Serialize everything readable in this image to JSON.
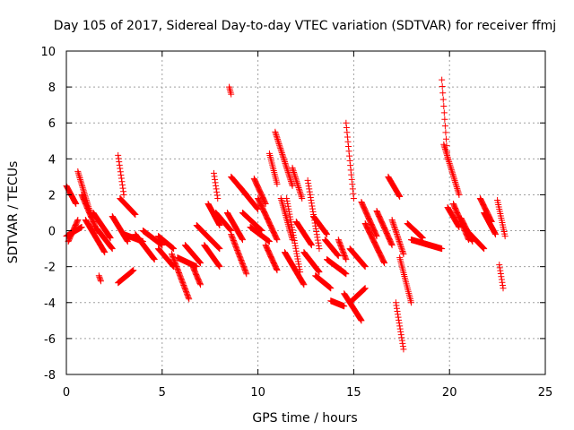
{
  "chart_data": {
    "type": "scatter",
    "title": "Day 105 of 2017, Sidereal Day-to-day VTEC variation (SDTVAR) for receiver ffmj",
    "xlabel": "GPS time / hours",
    "ylabel": "SDTVAR / TECUs",
    "xlim": [
      0,
      25
    ],
    "ylim": [
      -8,
      10
    ],
    "xticks": [
      "0",
      "5",
      "10",
      "15",
      "20",
      "25"
    ],
    "yticks": [
      "-8",
      "-6",
      "-4",
      "-2",
      "0",
      "2",
      "4",
      "6",
      "8",
      "10"
    ],
    "grid": true,
    "marker": "+",
    "series_color": "#ff0000",
    "segments": [
      {
        "x": [
          0.0,
          0.5
        ],
        "y": [
          2.5,
          1.5
        ]
      },
      {
        "x": [
          0.0,
          0.8
        ],
        "y": [
          -0.3,
          0.2
        ]
      },
      {
        "x": [
          0.1,
          0.6
        ],
        "y": [
          -0.6,
          0.6
        ]
      },
      {
        "x": [
          0.6,
          1.3
        ],
        "y": [
          3.3,
          0.8
        ]
      },
      {
        "x": [
          0.8,
          1.6
        ],
        "y": [
          2.0,
          0.0
        ]
      },
      {
        "x": [
          1.0,
          2.0
        ],
        "y": [
          0.6,
          -1.2
        ]
      },
      {
        "x": [
          1.4,
          2.3
        ],
        "y": [
          1.0,
          -0.4
        ]
      },
      {
        "x": [
          1.6,
          2.4
        ],
        "y": [
          0.1,
          -1.0
        ]
      },
      {
        "x": [
          1.7,
          1.8
        ],
        "y": [
          -2.5,
          -2.8
        ]
      },
      {
        "x": [
          2.7,
          3.0
        ],
        "y": [
          4.2,
          2.0
        ]
      },
      {
        "x": [
          2.8,
          3.6
        ],
        "y": [
          1.8,
          0.9
        ]
      },
      {
        "x": [
          2.4,
          3.2
        ],
        "y": [
          0.8,
          -0.6
        ]
      },
      {
        "x": [
          2.7,
          3.5
        ],
        "y": [
          -2.9,
          -2.2
        ]
      },
      {
        "x": [
          3.0,
          4.0
        ],
        "y": [
          -0.2,
          -0.6
        ]
      },
      {
        "x": [
          3.6,
          4.6
        ],
        "y": [
          -0.2,
          -1.6
        ]
      },
      {
        "x": [
          4.0,
          5.0
        ],
        "y": [
          0.0,
          -0.8
        ]
      },
      {
        "x": [
          4.8,
          5.6
        ],
        "y": [
          -0.3,
          -1.0
        ]
      },
      {
        "x": [
          4.8,
          5.6
        ],
        "y": [
          -1.0,
          -2.0
        ]
      },
      {
        "x": [
          5.5,
          6.4
        ],
        "y": [
          -1.3,
          -3.8
        ]
      },
      {
        "x": [
          5.8,
          6.8
        ],
        "y": [
          -1.5,
          -2.0
        ]
      },
      {
        "x": [
          6.2,
          7.0
        ],
        "y": [
          -0.8,
          -1.8
        ]
      },
      {
        "x": [
          6.6,
          7.0
        ],
        "y": [
          -2.0,
          -3.0
        ]
      },
      {
        "x": [
          6.8,
          8.0
        ],
        "y": [
          0.3,
          -1.0
        ]
      },
      {
        "x": [
          7.2,
          8.0
        ],
        "y": [
          -0.8,
          -2.0
        ]
      },
      {
        "x": [
          7.4,
          8.0
        ],
        "y": [
          1.5,
          0.3
        ]
      },
      {
        "x": [
          7.7,
          7.9
        ],
        "y": [
          3.2,
          1.8
        ]
      },
      {
        "x": [
          7.8,
          8.6
        ],
        "y": [
          1.0,
          0.0
        ]
      },
      {
        "x": [
          8.5,
          8.6
        ],
        "y": [
          8.0,
          7.6
        ]
      },
      {
        "x": [
          8.6,
          9.4
        ],
        "y": [
          3.0,
          2.0
        ]
      },
      {
        "x": [
          8.4,
          9.2
        ],
        "y": [
          1.0,
          -0.5
        ]
      },
      {
        "x": [
          8.6,
          9.4
        ],
        "y": [
          -0.2,
          -2.4
        ]
      },
      {
        "x": [
          9.0,
          10.0
        ],
        "y": [
          2.5,
          1.2
        ]
      },
      {
        "x": [
          9.2,
          10.2
        ],
        "y": [
          1.0,
          0.0
        ]
      },
      {
        "x": [
          9.6,
          10.6
        ],
        "y": [
          0.2,
          -0.6
        ]
      },
      {
        "x": [
          9.8,
          10.4
        ],
        "y": [
          2.9,
          1.5
        ]
      },
      {
        "x": [
          10.0,
          11.0
        ],
        "y": [
          1.8,
          -0.5
        ]
      },
      {
        "x": [
          10.4,
          11.0
        ],
        "y": [
          -0.8,
          -2.2
        ]
      },
      {
        "x": [
          10.6,
          11.0
        ],
        "y": [
          4.3,
          2.6
        ]
      },
      {
        "x": [
          10.9,
          11.8
        ],
        "y": [
          5.5,
          2.5
        ]
      },
      {
        "x": [
          11.2,
          11.8
        ],
        "y": [
          1.8,
          -0.5
        ]
      },
      {
        "x": [
          11.5,
          12.2
        ],
        "y": [
          1.8,
          -2.3
        ]
      },
      {
        "x": [
          11.4,
          12.4
        ],
        "y": [
          -1.2,
          -3.0
        ]
      },
      {
        "x": [
          11.8,
          12.3
        ],
        "y": [
          3.5,
          1.8
        ]
      },
      {
        "x": [
          12.0,
          12.8
        ],
        "y": [
          0.5,
          -0.8
        ]
      },
      {
        "x": [
          12.4,
          13.2
        ],
        "y": [
          -1.2,
          -2.3
        ]
      },
      {
        "x": [
          12.6,
          13.2
        ],
        "y": [
          2.8,
          -1.0
        ]
      },
      {
        "x": [
          12.9,
          13.6
        ],
        "y": [
          0.8,
          -0.2
        ]
      },
      {
        "x": [
          13.0,
          13.8
        ],
        "y": [
          -2.5,
          -3.2
        ]
      },
      {
        "x": [
          13.5,
          14.2
        ],
        "y": [
          -0.5,
          -1.4
        ]
      },
      {
        "x": [
          13.6,
          14.6
        ],
        "y": [
          -1.6,
          -2.4
        ]
      },
      {
        "x": [
          13.8,
          14.5
        ],
        "y": [
          -3.9,
          -4.2
        ]
      },
      {
        "x": [
          14.2,
          14.6
        ],
        "y": [
          -0.5,
          -1.6
        ]
      },
      {
        "x": [
          14.6,
          15.0
        ],
        "y": [
          6.0,
          1.8
        ]
      },
      {
        "x": [
          14.5,
          15.4
        ],
        "y": [
          -3.5,
          -5.0
        ]
      },
      {
        "x": [
          14.8,
          15.6
        ],
        "y": [
          -4.0,
          -3.2
        ]
      },
      {
        "x": [
          14.8,
          15.6
        ],
        "y": [
          -1.0,
          -2.0
        ]
      },
      {
        "x": [
          15.4,
          16.2
        ],
        "y": [
          1.6,
          -0.3
        ]
      },
      {
        "x": [
          15.6,
          16.6
        ],
        "y": [
          0.4,
          -1.8
        ]
      },
      {
        "x": [
          16.2,
          17.0
        ],
        "y": [
          1.1,
          -0.8
        ]
      },
      {
        "x": [
          16.8,
          17.4
        ],
        "y": [
          3.0,
          1.9
        ]
      },
      {
        "x": [
          17.0,
          17.6
        ],
        "y": [
          0.6,
          -1.3
        ]
      },
      {
        "x": [
          17.2,
          17.6
        ],
        "y": [
          -4.0,
          -6.6
        ]
      },
      {
        "x": [
          17.4,
          18.0
        ],
        "y": [
          -1.5,
          -4.0
        ]
      },
      {
        "x": [
          17.8,
          18.6
        ],
        "y": [
          0.4,
          -0.4
        ]
      },
      {
        "x": [
          18.0,
          19.6
        ],
        "y": [
          -0.5,
          -1.0
        ]
      },
      {
        "x": [
          19.6,
          19.9
        ],
        "y": [
          8.4,
          4.0
        ]
      },
      {
        "x": [
          19.7,
          20.5
        ],
        "y": [
          4.8,
          2.0
        ]
      },
      {
        "x": [
          19.9,
          20.5
        ],
        "y": [
          1.3,
          0.2
        ]
      },
      {
        "x": [
          20.2,
          21.0
        ],
        "y": [
          1.5,
          -0.5
        ]
      },
      {
        "x": [
          20.6,
          21.2
        ],
        "y": [
          0.7,
          -0.6
        ]
      },
      {
        "x": [
          21.0,
          21.8
        ],
        "y": [
          -0.1,
          -1.0
        ]
      },
      {
        "x": [
          21.6,
          22.2
        ],
        "y": [
          1.8,
          0.5
        ]
      },
      {
        "x": [
          21.8,
          22.4
        ],
        "y": [
          1.0,
          -0.2
        ]
      },
      {
        "x": [
          22.5,
          22.9
        ],
        "y": [
          1.7,
          -0.3
        ]
      },
      {
        "x": [
          22.6,
          22.8
        ],
        "y": [
          -1.9,
          -3.2
        ]
      }
    ]
  }
}
